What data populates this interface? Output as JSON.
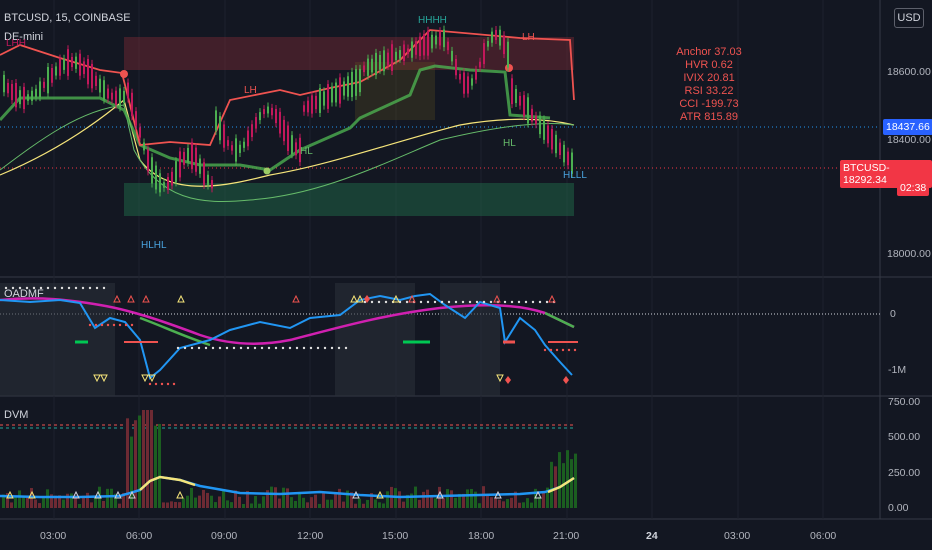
{
  "header": {
    "symbol": "BTCUSD, 15, COINBASE",
    "indicator": "DE-mini",
    "currency_button": "USD"
  },
  "stats": {
    "anchor": "Anchor 37.03",
    "hvr": "HVR 0.62",
    "ivix": "IVIX 20.81",
    "rsi": "RSI 33.22",
    "cci": "CCI -199.73",
    "atr": "ATR 815.89"
  },
  "price_axis": [
    "18600.00",
    "18400.00",
    "18000.00"
  ],
  "price_tags": {
    "level_price": "18437.66",
    "last_symbol": "BTCUSD",
    "last_price": "18292.34",
    "countdown": "02:38"
  },
  "chart_labels": {
    "top_left": "LHH",
    "top_mid": "HHHH",
    "lh_right": "LH",
    "lh_mid": "LH",
    "hl_left": "HL",
    "hl_right": "HL",
    "hlhl": "HLHL",
    "hlll": "HLLL"
  },
  "oadmf": {
    "title": "OADMF",
    "axis": [
      "0",
      "-1M"
    ]
  },
  "dvm": {
    "title": "DVM",
    "axis": [
      "750.00",
      "500.00",
      "250.00",
      "0.00"
    ]
  },
  "time_axis": [
    "03:00",
    "06:00",
    "09:00",
    "12:00",
    "15:00",
    "18:00",
    "21:00",
    "24",
    "03:00",
    "06:00"
  ],
  "colors": {
    "background": "#131722",
    "up": "#26a69a",
    "down": "#ef5350",
    "blue_line": "#2196f3",
    "magenta_line": "#d020b0",
    "yellow": "#f5e47a",
    "red_tag": "#f23645",
    "level_tag": "#2962ff"
  }
}
